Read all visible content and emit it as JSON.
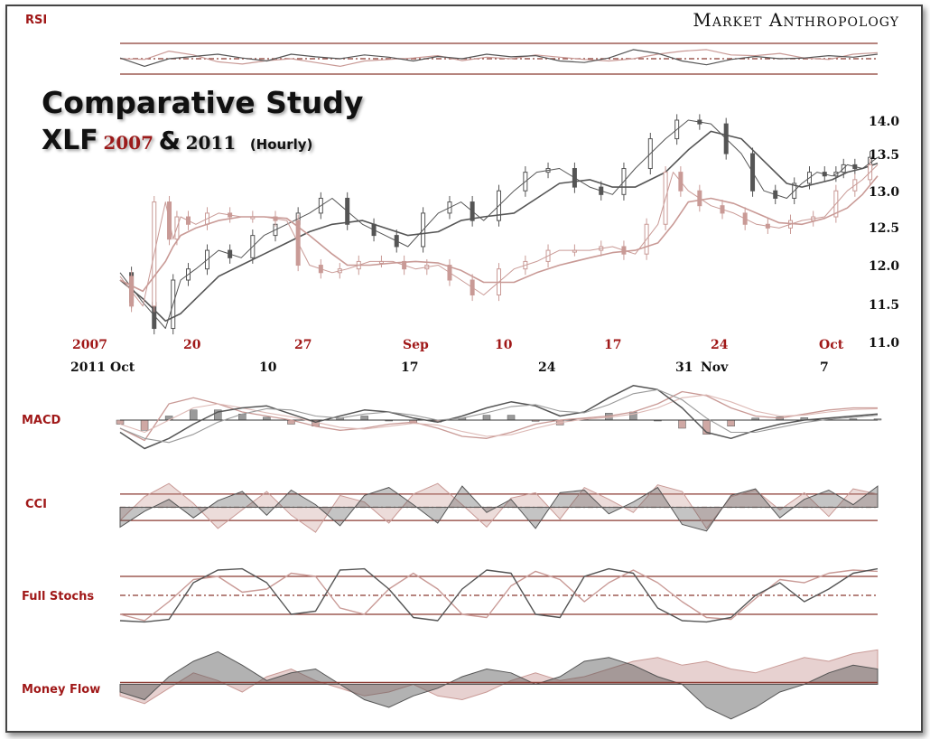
{
  "brand": "Market Anthropology",
  "title": {
    "line1": "Comparative Study",
    "ticker": "XLF",
    "year_a": "2007",
    "amp": "&",
    "year_b": "2011",
    "frequency": "(Hourly)"
  },
  "panel_labels": {
    "rsi": "RSI",
    "macd": "MACD",
    "cci": "CCI",
    "stoch": "Full Stochs",
    "mfi": "Money Flow"
  },
  "colors": {
    "series_2007": "#c99a96",
    "series_2011": "#555555",
    "reference_lines": "#8b3a32",
    "label_red": "#a01818"
  },
  "chart_data": {
    "type": "line",
    "title": "Comparative Study XLF 2007 & 2011 (Hourly)",
    "y_ticks": [
      "14.0",
      "13.5",
      "13.0",
      "12.5",
      "12.0",
      "11.5",
      "11.0"
    ],
    "ylim": [
      11.0,
      14.2
    ],
    "x_ticks_2007": [
      "2007",
      "20",
      "27",
      "Sep",
      "10",
      "17",
      "24",
      "Oct"
    ],
    "x_ticks_2011": [
      "2011",
      "Oct",
      "10",
      "17",
      "24",
      "31",
      "Nov",
      "7"
    ],
    "series": [
      {
        "name": "2011",
        "x": [
          0,
          3,
          6,
          8,
          10,
          13,
          16,
          19,
          22,
          25,
          28,
          32,
          35,
          38,
          42,
          45,
          48,
          52,
          55,
          58,
          62,
          65,
          68,
          72,
          75,
          78,
          82,
          85,
          88,
          90,
          92,
          94,
          95,
          96,
          98,
          100
        ],
        "close": [
          11.95,
          11.55,
          11.2,
          11.85,
          12.0,
          12.25,
          12.15,
          12.45,
          12.6,
          12.75,
          12.95,
          12.6,
          12.45,
          12.3,
          12.75,
          12.9,
          12.65,
          13.05,
          13.3,
          13.35,
          13.1,
          13.0,
          13.35,
          13.75,
          14.0,
          13.95,
          13.55,
          13.05,
          12.95,
          13.15,
          13.3,
          13.25,
          13.3,
          13.4,
          13.35,
          13.5
        ],
        "moving_average": [
          11.85,
          11.6,
          11.3,
          11.4,
          11.6,
          11.9,
          12.05,
          12.2,
          12.35,
          12.5,
          12.6,
          12.65,
          12.55,
          12.45,
          12.5,
          12.65,
          12.7,
          12.75,
          12.95,
          13.15,
          13.2,
          13.1,
          13.1,
          13.3,
          13.6,
          13.85,
          13.75,
          13.45,
          13.15,
          13.1,
          13.15,
          13.2,
          13.25,
          13.3,
          13.35,
          13.42
        ]
      },
      {
        "name": "2007",
        "x": [
          0,
          3,
          6,
          7,
          8,
          10,
          13,
          16,
          19,
          22,
          25,
          28,
          30,
          33,
          36,
          39,
          42,
          45,
          48,
          52,
          55,
          58,
          62,
          65,
          68,
          71,
          73,
          75,
          78,
          81,
          84,
          87,
          90,
          93,
          96,
          98,
          100
        ],
        "close": [
          11.9,
          11.5,
          12.9,
          12.4,
          12.7,
          12.6,
          12.75,
          12.7,
          12.7,
          12.65,
          12.05,
          11.95,
          12.0,
          12.1,
          12.1,
          12.0,
          12.05,
          11.85,
          11.65,
          12.0,
          12.1,
          12.25,
          12.25,
          12.3,
          12.2,
          12.6,
          13.3,
          13.05,
          12.85,
          12.75,
          12.6,
          12.55,
          12.65,
          12.7,
          13.05,
          13.2,
          13.4
        ],
        "moving_average": [
          11.85,
          11.7,
          12.1,
          12.3,
          12.45,
          12.55,
          12.65,
          12.7,
          12.7,
          12.68,
          12.45,
          12.2,
          12.05,
          12.05,
          12.08,
          12.1,
          12.08,
          11.98,
          11.82,
          11.82,
          11.95,
          12.05,
          12.15,
          12.22,
          12.25,
          12.35,
          12.6,
          12.9,
          12.95,
          12.88,
          12.75,
          12.62,
          12.6,
          12.68,
          12.82,
          13.0,
          13.25
        ]
      }
    ],
    "indicators": {
      "rsi": {
        "lines": [
          30,
          50,
          70
        ],
        "ylim": [
          0,
          100
        ],
        "series_2011": [
          52,
          30,
          50,
          56,
          62,
          52,
          44,
          62,
          55,
          50,
          60,
          54,
          44,
          56,
          50,
          62,
          55,
          58,
          44,
          40,
          52,
          74,
          64,
          44,
          34,
          48,
          56,
          50,
          52,
          58,
          54,
          62
        ],
        "series_2007": [
          50,
          48,
          70,
          60,
          42,
          36,
          45,
          50,
          40,
          30,
          44,
          48,
          52,
          58,
          45,
          54,
          50,
          60,
          54,
          48,
          44,
          50,
          62,
          70,
          74,
          60,
          58,
          64,
          52,
          48,
          62,
          66
        ]
      },
      "macd": {
        "ylim": [
          -1,
          1
        ],
        "macd_2011": [
          -0.3,
          -0.7,
          -0.45,
          -0.1,
          0.2,
          0.3,
          0.35,
          0.15,
          -0.05,
          0.1,
          0.25,
          0.2,
          0.05,
          -0.05,
          0.1,
          0.3,
          0.45,
          0.35,
          0.1,
          0.2,
          0.55,
          0.85,
          0.75,
          0.3,
          -0.3,
          -0.45,
          -0.25,
          -0.1,
          0.0,
          0.05,
          0.1,
          0.15
        ],
        "signal_2011": [
          -0.2,
          -0.45,
          -0.55,
          -0.35,
          -0.05,
          0.15,
          0.28,
          0.25,
          0.1,
          0.05,
          0.15,
          0.2,
          0.12,
          0.0,
          0.05,
          0.18,
          0.33,
          0.38,
          0.22,
          0.18,
          0.38,
          0.65,
          0.75,
          0.5,
          0.05,
          -0.3,
          -0.3,
          -0.18,
          -0.06,
          0.02,
          0.07,
          0.12
        ],
        "macd_2007": [
          -0.2,
          -0.5,
          0.4,
          0.55,
          0.4,
          0.2,
          0.1,
          0.0,
          -0.15,
          -0.25,
          -0.2,
          -0.1,
          -0.05,
          -0.2,
          -0.4,
          -0.45,
          -0.3,
          -0.1,
          0.0,
          0.05,
          0.1,
          0.2,
          0.4,
          0.7,
          0.6,
          0.3,
          0.1,
          0.05,
          0.15,
          0.25,
          0.3,
          0.3
        ],
        "signal_2007": [
          -0.1,
          -0.3,
          0.0,
          0.3,
          0.4,
          0.3,
          0.18,
          0.08,
          -0.05,
          -0.18,
          -0.22,
          -0.15,
          -0.08,
          -0.12,
          -0.28,
          -0.4,
          -0.36,
          -0.2,
          -0.06,
          0.02,
          0.07,
          0.15,
          0.3,
          0.55,
          0.62,
          0.45,
          0.22,
          0.1,
          0.12,
          0.2,
          0.26,
          0.28
        ],
        "histogram": [
          -0.1,
          -0.25,
          0.1,
          0.25,
          0.25,
          0.15,
          0.07,
          -0.1,
          -0.15,
          0.05,
          0.1,
          0.0,
          -0.07,
          -0.05,
          0.05,
          0.12,
          0.12,
          -0.03,
          -0.12,
          0.02,
          0.17,
          0.2,
          0.0,
          -0.2,
          -0.35,
          -0.15,
          0.05,
          0.08,
          0.06,
          0.03,
          0.03,
          0.03
        ]
      },
      "cci": {
        "lines": [
          -100,
          0,
          100
        ],
        "ylim": [
          -250,
          250
        ],
        "series_2011": [
          -150,
          -30,
          60,
          -80,
          50,
          120,
          -60,
          130,
          20,
          -140,
          90,
          150,
          20,
          -120,
          160,
          -40,
          60,
          -160,
          110,
          130,
          -50,
          40,
          150,
          -130,
          -180,
          90,
          140,
          -80,
          60,
          130,
          20,
          160
        ],
        "series_2007": [
          -100,
          80,
          180,
          30,
          -160,
          -20,
          120,
          -60,
          -190,
          90,
          40,
          -120,
          100,
          180,
          20,
          -150,
          70,
          110,
          -90,
          150,
          60,
          -40,
          170,
          120,
          -160,
          80,
          130,
          -20,
          110,
          -70,
          140,
          100
        ]
      },
      "stoch": {
        "lines": [
          20,
          50,
          80
        ],
        "ylim": [
          0,
          100
        ],
        "series_2011": [
          10,
          8,
          12,
          70,
          90,
          92,
          70,
          20,
          25,
          90,
          92,
          60,
          15,
          10,
          60,
          90,
          85,
          20,
          15,
          80,
          92,
          85,
          30,
          10,
          8,
          15,
          50,
          70,
          40,
          60,
          85,
          92
        ],
        "series_2007": [
          20,
          10,
          40,
          75,
          80,
          55,
          60,
          85,
          80,
          30,
          20,
          60,
          85,
          60,
          20,
          15,
          65,
          88,
          75,
          40,
          70,
          90,
          70,
          40,
          15,
          12,
          45,
          75,
          70,
          85,
          90,
          88
        ]
      },
      "mfi": {
        "ylim": [
          -1,
          1
        ],
        "series_2011": [
          -0.2,
          -0.4,
          0.2,
          0.6,
          0.85,
          0.5,
          0.1,
          0.3,
          0.4,
          0.0,
          -0.4,
          -0.6,
          -0.3,
          -0.1,
          0.2,
          0.4,
          0.3,
          0.0,
          0.2,
          0.6,
          0.7,
          0.5,
          0.2,
          0.0,
          -0.6,
          -0.9,
          -0.6,
          -0.2,
          0.0,
          0.3,
          0.5,
          0.4
        ],
        "series_2007": [
          -0.3,
          -0.5,
          -0.1,
          0.3,
          0.1,
          -0.2,
          0.2,
          0.4,
          0.1,
          -0.1,
          -0.3,
          -0.2,
          0.0,
          -0.3,
          -0.4,
          -0.2,
          0.1,
          0.3,
          0.1,
          0.2,
          0.4,
          0.6,
          0.7,
          0.5,
          0.6,
          0.4,
          0.3,
          0.5,
          0.7,
          0.6,
          0.8,
          0.9
        ]
      }
    }
  }
}
